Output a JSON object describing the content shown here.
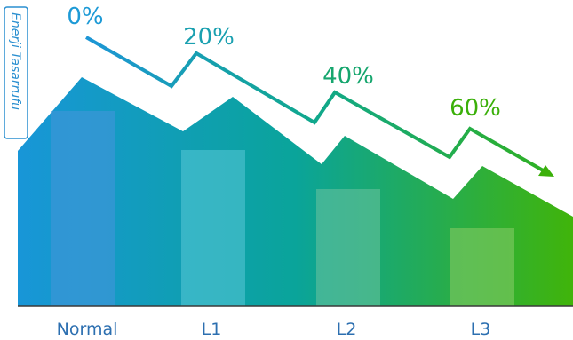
{
  "chart_data": {
    "type": "bar",
    "ylabel": "Enerji Tasarrufu",
    "categories": [
      "Normal",
      "L1",
      "L2",
      "L3"
    ],
    "values": [
      100,
      80,
      60,
      40
    ],
    "savings_labels": [
      "0%",
      "20%",
      "40%",
      "60%"
    ],
    "ylim": [
      0,
      110
    ],
    "grid": false,
    "legend": "none"
  },
  "colors": {
    "blue": "#1d9ad6",
    "teal": "#10a6a8",
    "green": "#14a84a",
    "bright_green": "#3bb00a",
    "category_text": "#2c6fb0",
    "label_text": "#2a8fd0"
  }
}
